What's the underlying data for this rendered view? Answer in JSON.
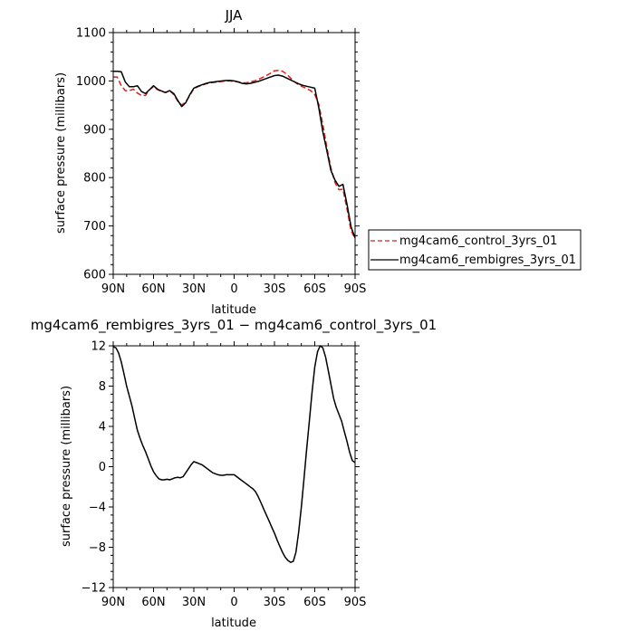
{
  "chart_data": [
    {
      "type": "line",
      "title": "JJA",
      "xlabel": "latitude",
      "ylabel": "surface pressure (millibars)",
      "xlim": [
        90,
        -90
      ],
      "ylim": [
        600,
        1100
      ],
      "xticks": [
        90,
        60,
        30,
        0,
        -30,
        -60,
        -90
      ],
      "xtick_labels": [
        "90N",
        "60N",
        "30N",
        "0",
        "30S",
        "60S",
        "90S"
      ],
      "yticks": [
        600,
        700,
        800,
        900,
        1000,
        1100
      ],
      "ytick_labels": [
        "600",
        "700",
        "800",
        "900",
        "1000",
        "1100"
      ],
      "grid": false,
      "legend_position": "right-bottom, outside plot",
      "series": [
        {
          "name": "mg4cam6_control_3yrs_01",
          "color": "#e0201b",
          "style": "dashed",
          "x": [
            90,
            87,
            84,
            81,
            78,
            75,
            72,
            69,
            66,
            63,
            60,
            57,
            54,
            51,
            48,
            45,
            42,
            39,
            36,
            33,
            30,
            27,
            24,
            21,
            18,
            15,
            12,
            9,
            6,
            3,
            0,
            -3,
            -6,
            -9,
            -12,
            -15,
            -18,
            -21,
            -24,
            -27,
            -30,
            -33,
            -36,
            -39,
            -42,
            -45,
            -48,
            -51,
            -54,
            -57,
            -60,
            -63,
            -66,
            -69,
            -72,
            -75,
            -78,
            -81,
            -84,
            -87,
            -90
          ],
          "y": [
            1008,
            1008,
            990,
            980,
            980,
            983,
            975,
            970,
            970,
            982,
            988,
            982,
            978,
            976,
            980,
            972,
            958,
            950,
            957,
            970,
            984,
            988,
            991,
            994,
            996,
            997,
            998,
            999,
            1000,
            1000,
            999,
            998,
            996,
            996,
            998,
            1000,
            1003,
            1007,
            1011,
            1016,
            1021,
            1022,
            1020,
            1014,
            1006,
            998,
            992,
            988,
            984,
            980,
            972,
            952,
            910,
            862,
            820,
            790,
            775,
            776,
            735,
            690,
            674
          ]
        },
        {
          "name": "mg4cam6_rembigres_3yrs_01",
          "color": "#000000",
          "style": "solid",
          "x": [
            90,
            87,
            84,
            81,
            78,
            75,
            72,
            69,
            66,
            63,
            60,
            57,
            54,
            51,
            48,
            45,
            42,
            39,
            36,
            33,
            30,
            27,
            24,
            21,
            18,
            15,
            12,
            9,
            6,
            3,
            0,
            -3,
            -6,
            -9,
            -12,
            -15,
            -18,
            -21,
            -24,
            -27,
            -30,
            -33,
            -36,
            -39,
            -42,
            -45,
            -48,
            -51,
            -54,
            -57,
            -60,
            -63,
            -66,
            -69,
            -72,
            -75,
            -78,
            -81,
            -84,
            -87,
            -90
          ],
          "y": [
            1020,
            1020,
            1019,
            998,
            988,
            988,
            990,
            978,
            974,
            982,
            990,
            983,
            979,
            976,
            980,
            974,
            960,
            947,
            955,
            972,
            985,
            989,
            992,
            995,
            997,
            998,
            999,
            1000,
            1001,
            1001,
            1000,
            998,
            995,
            994,
            995,
            997,
            999,
            1002,
            1005,
            1008,
            1011,
            1012,
            1010,
            1006,
            1002,
            998,
            994,
            991,
            989,
            987,
            985,
            945,
            895,
            855,
            815,
            795,
            782,
            786,
            745,
            698,
            675
          ]
        }
      ]
    },
    {
      "type": "line",
      "title": "mg4cam6_rembigres_3yrs_01 − mg4cam6_control_3yrs_01",
      "xlabel": "latitude",
      "ylabel": "surface pressure (millibars)",
      "xlim": [
        90,
        -90
      ],
      "ylim": [
        -12,
        12
      ],
      "xticks": [
        90,
        60,
        30,
        0,
        -30,
        -60,
        -90
      ],
      "xtick_labels": [
        "90N",
        "60N",
        "30N",
        "0",
        "30S",
        "60S",
        "90S"
      ],
      "yticks": [
        -12,
        -8,
        -4,
        0,
        4,
        8,
        12
      ],
      "ytick_labels": [
        "−12",
        "−8",
        "−4",
        "0",
        "4",
        "8",
        "12"
      ],
      "grid": false,
      "series": [
        {
          "color": "#000000",
          "style": "solid",
          "x": [
            90,
            88,
            86,
            84,
            82,
            80,
            78,
            76,
            74,
            72,
            70,
            68,
            66,
            64,
            62,
            60,
            58,
            56,
            54,
            52,
            50,
            48,
            46,
            44,
            42,
            40,
            38,
            36,
            34,
            32,
            30,
            28,
            26,
            24,
            22,
            20,
            18,
            16,
            14,
            12,
            10,
            8,
            6,
            4,
            2,
            0,
            -2,
            -4,
            -6,
            -8,
            -10,
            -12,
            -14,
            -16,
            -18,
            -20,
            -22,
            -24,
            -26,
            -28,
            -30,
            -32,
            -34,
            -36,
            -38,
            -40,
            -42,
            -44,
            -46,
            -48,
            -50,
            -52,
            -54,
            -56,
            -58,
            -60,
            -62,
            -64,
            -66,
            -68,
            -70,
            -72,
            -74,
            -76,
            -78,
            -80,
            -82,
            -84,
            -86,
            -88,
            -90
          ],
          "y": [
            11.9,
            11.8,
            11.3,
            10.4,
            9.2,
            8.0,
            7.0,
            6.0,
            4.8,
            3.6,
            2.8,
            2.1,
            1.5,
            0.8,
            0.1,
            -0.5,
            -0.9,
            -1.2,
            -1.3,
            -1.3,
            -1.25,
            -1.3,
            -1.2,
            -1.1,
            -1.05,
            -1.1,
            -1.0,
            -0.6,
            -0.2,
            0.2,
            0.5,
            0.4,
            0.3,
            0.2,
            0.0,
            -0.2,
            -0.4,
            -0.6,
            -0.7,
            -0.8,
            -0.85,
            -0.85,
            -0.8,
            -0.8,
            -0.8,
            -0.8,
            -1.0,
            -1.2,
            -1.4,
            -1.6,
            -1.8,
            -2.0,
            -2.2,
            -2.5,
            -3.0,
            -3.6,
            -4.2,
            -4.8,
            -5.4,
            -6.0,
            -6.6,
            -7.3,
            -7.9,
            -8.5,
            -9.0,
            -9.3,
            -9.5,
            -9.4,
            -8.5,
            -6.5,
            -4.0,
            -1.2,
            1.8,
            4.6,
            7.4,
            9.9,
            11.4,
            12.0,
            11.8,
            10.9,
            9.6,
            8.2,
            6.8,
            5.9,
            5.2,
            4.5,
            3.5,
            2.5,
            1.4,
            0.6,
            0.4
          ]
        }
      ]
    }
  ]
}
